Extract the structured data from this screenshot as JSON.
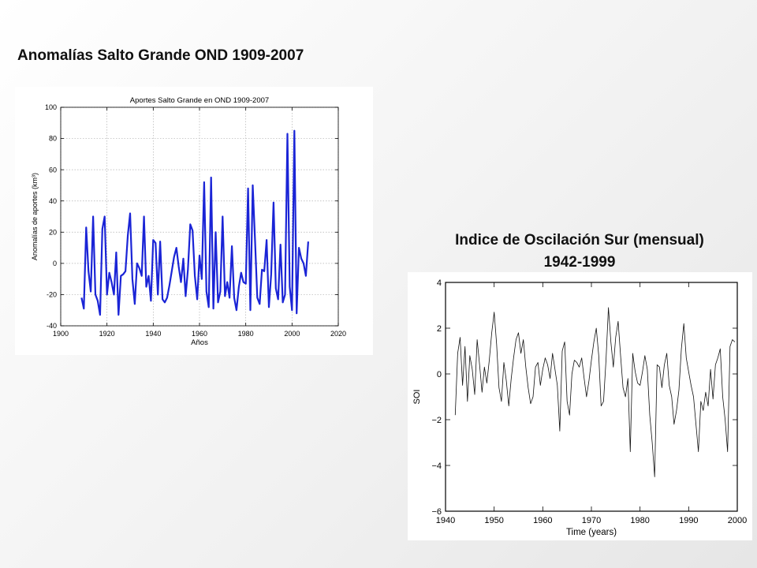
{
  "slide": {
    "title_left": "Anomalías Salto Grande OND 1909-2007",
    "title_right_line1": "Indice de Oscilación Sur (mensual)",
    "title_right_line2": "1942-1999"
  },
  "chart_data": [
    {
      "type": "line",
      "title": "Aportes Salto Grande en OND 1909-2007",
      "xlabel": "Años",
      "ylabel": "Anomalías de aportes (km³)",
      "xlim": [
        1900,
        2020
      ],
      "ylim": [
        -40,
        100
      ],
      "xticks": [
        "1900",
        "1920",
        "1940",
        "1960",
        "1980",
        "2000",
        "2020"
      ],
      "yticks": [
        "-40",
        "-20",
        "0",
        "20",
        "40",
        "60",
        "80",
        "100"
      ],
      "grid": true,
      "series_color": "#1a24d6",
      "series": [
        {
          "x": [
            1909,
            1910,
            1911,
            1912,
            1913,
            1914,
            1915,
            1916,
            1917,
            1918,
            1919,
            1920,
            1921,
            1922,
            1923,
            1924,
            1925,
            1926,
            1927,
            1928,
            1929,
            1930,
            1931,
            1932,
            1933,
            1934,
            1935,
            1936,
            1937,
            1938,
            1939,
            1940,
            1941,
            1942,
            1943,
            1944,
            1945,
            1946,
            1947,
            1948,
            1949,
            1950,
            1951,
            1952,
            1953,
            1954,
            1955,
            1956,
            1957,
            1958,
            1959,
            1960,
            1961,
            1962,
            1963,
            1964,
            1965,
            1966,
            1967,
            1968,
            1969,
            1970,
            1971,
            1972,
            1973,
            1974,
            1975,
            1976,
            1977,
            1978,
            1979,
            1980,
            1981,
            1982,
            1983,
            1984,
            1985,
            1986,
            1987,
            1988,
            1989,
            1990,
            1991,
            1992,
            1993,
            1994,
            1995,
            1996,
            1997,
            1998,
            1999,
            2000,
            2001,
            2002,
            2003,
            2004,
            2005,
            2006,
            2007
          ],
          "values": [
            -22,
            -29,
            23,
            -5,
            -18,
            30,
            -20,
            -24,
            -33,
            22,
            30,
            -20,
            -6,
            -12,
            -20,
            7,
            -33,
            -8,
            -7,
            -5,
            18,
            32,
            -10,
            -26,
            0,
            -3,
            -8,
            30,
            -15,
            -8,
            -24,
            15,
            13,
            -20,
            14,
            -23,
            -25,
            -22,
            -14,
            -5,
            4,
            10,
            -2,
            -12,
            3,
            -21,
            -4,
            25,
            21,
            -8,
            -23,
            5,
            -10,
            52,
            -18,
            -28,
            55,
            -29,
            20,
            -25,
            -18,
            30,
            -21,
            -12,
            -22,
            11,
            -22,
            -30,
            -15,
            -6,
            -12,
            -13,
            48,
            -30,
            50,
            15,
            -22,
            -26,
            -4,
            -5,
            15,
            -28,
            -7,
            39,
            -16,
            -23,
            12,
            -25,
            -20,
            83,
            -15,
            -30,
            85,
            -32,
            10,
            3,
            0,
            -8,
            14
          ]
        }
      ]
    },
    {
      "type": "line",
      "title": "",
      "xlabel": "Time (years)",
      "ylabel": "SOI",
      "xlim": [
        1940,
        2000
      ],
      "ylim": [
        -6,
        4
      ],
      "xticks": [
        "1940",
        "1950",
        "1960",
        "1970",
        "1980",
        "1990",
        "2000"
      ],
      "yticks": [
        "4",
        "2",
        "0",
        "−2",
        "−4",
        "−6"
      ],
      "grid": false,
      "series_color": "#111111",
      "series": [
        {
          "x": [
            1942,
            1942.5,
            1943,
            1943.5,
            1944,
            1944.5,
            1945,
            1945.5,
            1946,
            1946.5,
            1947,
            1947.5,
            1948,
            1948.5,
            1949,
            1949.5,
            1950,
            1950.5,
            1951,
            1951.5,
            1952,
            1952.5,
            1953,
            1953.5,
            1954,
            1954.5,
            1955,
            1955.5,
            1956,
            1956.5,
            1957,
            1957.5,
            1958,
            1958.5,
            1959,
            1959.5,
            1960,
            1960.5,
            1961,
            1961.5,
            1962,
            1962.5,
            1963,
            1963.5,
            1964,
            1964.5,
            1965,
            1965.5,
            1966,
            1966.5,
            1967,
            1967.5,
            1968,
            1968.5,
            1969,
            1969.5,
            1970,
            1970.5,
            1971,
            1971.5,
            1972,
            1972.5,
            1973,
            1973.5,
            1974,
            1974.5,
            1975,
            1975.5,
            1976,
            1976.5,
            1977,
            1977.5,
            1978,
            1978.5,
            1979,
            1979.5,
            1980,
            1980.5,
            1981,
            1981.5,
            1982,
            1982.5,
            1983,
            1983.5,
            1984,
            1984.5,
            1985,
            1985.5,
            1986,
            1986.5,
            1987,
            1987.5,
            1988,
            1988.5,
            1989,
            1989.5,
            1990,
            1990.5,
            1991,
            1991.5,
            1992,
            1992.5,
            1993,
            1993.5,
            1994,
            1994.5,
            1995,
            1995.5,
            1996,
            1996.5,
            1997,
            1997.5,
            1998,
            1998.5,
            1999,
            1999.5
          ],
          "values": [
            -1.8,
            0.9,
            1.6,
            -0.5,
            1.2,
            -1.2,
            0.8,
            0.2,
            -0.9,
            1.5,
            0.4,
            -0.8,
            0.3,
            -0.4,
            0.6,
            1.8,
            2.7,
            1.3,
            -0.6,
            -1.2,
            0.5,
            -0.3,
            -1.4,
            -0.2,
            0.7,
            1.5,
            1.8,
            0.9,
            1.5,
            0.3,
            -0.6,
            -1.3,
            -1.0,
            0.3,
            0.5,
            -0.5,
            0.2,
            0.7,
            0.4,
            -0.2,
            0.9,
            0.2,
            -0.5,
            -2.5,
            1.0,
            1.4,
            -1.2,
            -1.8,
            0.0,
            0.6,
            0.5,
            0.3,
            0.7,
            -0.2,
            -1.0,
            -0.3,
            0.6,
            1.4,
            2.0,
            0.8,
            -1.4,
            -1.2,
            0.6,
            2.9,
            1.4,
            0.3,
            1.6,
            2.3,
            0.8,
            -0.6,
            -1.0,
            -0.2,
            -3.4,
            0.9,
            0.1,
            -0.4,
            -0.5,
            0.1,
            0.8,
            0.2,
            -1.8,
            -3.0,
            -4.5,
            0.4,
            0.3,
            -0.6,
            0.4,
            0.9,
            -0.5,
            -1.0,
            -2.2,
            -1.6,
            -0.7,
            1.1,
            2.2,
            0.7,
            0.1,
            -0.5,
            -1.0,
            -2.2,
            -3.4,
            -1.2,
            -1.6,
            -0.8,
            -1.4,
            0.2,
            -1.1,
            0.4,
            0.7,
            1.1,
            -1.0,
            -2.0,
            -3.4,
            1.2,
            1.5,
            1.4
          ]
        }
      ]
    }
  ]
}
